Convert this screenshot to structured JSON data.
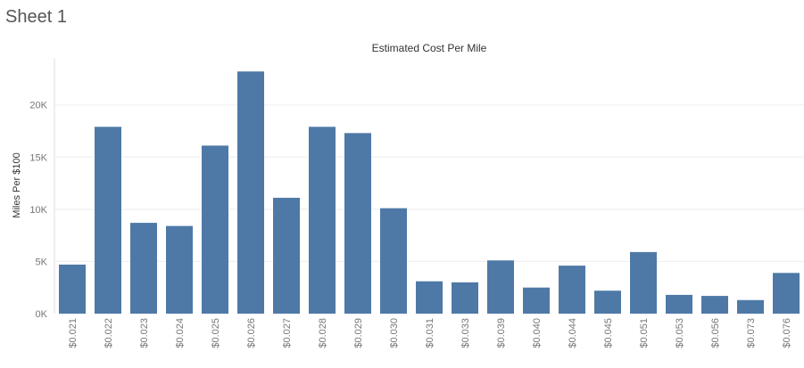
{
  "sheet": {
    "title": "Sheet 1"
  },
  "colors": {
    "bar": "#4e79a7",
    "grid": "#eeeeee",
    "axis": "#dddddd"
  },
  "chart_data": {
    "type": "bar",
    "title": "Estimated Cost Per Mile",
    "xlabel": "",
    "ylabel": "Miles Per $100",
    "grid": true,
    "ylim": [
      0,
      24500
    ],
    "yticks": [
      0,
      5000,
      10000,
      15000,
      20000
    ],
    "ytick_labels": [
      "0K",
      "5K",
      "10K",
      "15K",
      "20K"
    ],
    "categories": [
      "$0.021",
      "$0.022",
      "$0.023",
      "$0.024",
      "$0.025",
      "$0.026",
      "$0.027",
      "$0.028",
      "$0.029",
      "$0.030",
      "$0.031",
      "$0.033",
      "$0.039",
      "$0.040",
      "$0.044",
      "$0.045",
      "$0.051",
      "$0.053",
      "$0.056",
      "$0.073",
      "$0.076"
    ],
    "values": [
      4700,
      17900,
      8700,
      8400,
      16100,
      23200,
      11100,
      17900,
      17300,
      10100,
      3100,
      3000,
      5100,
      2500,
      4600,
      2200,
      5900,
      1800,
      1700,
      1300,
      3900
    ]
  }
}
